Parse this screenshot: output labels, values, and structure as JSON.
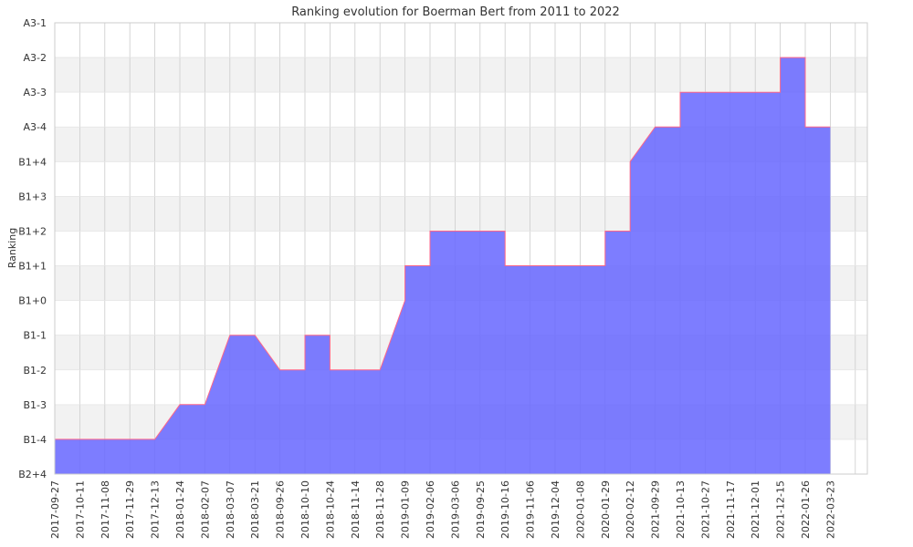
{
  "chart_data": {
    "type": "area",
    "title": "Ranking evolution for Boerman Bert from 2011 to 2022",
    "ylabel": "Ranking",
    "xlabel": "",
    "y_categories": [
      "B2+4",
      "B1-4",
      "B1-3",
      "B1-2",
      "B1-1",
      "B1+0",
      "B1+1",
      "B1+2",
      "B1+3",
      "B1+4",
      "A3-4",
      "A3-3",
      "A3-2",
      "A3-1"
    ],
    "x_tick_labels": [
      "2017-09-27",
      "2017-10-11",
      "2017-11-08",
      "2017-11-29",
      "2017-12-13",
      "2018-01-24",
      "2018-02-07",
      "2018-03-07",
      "2018-03-21",
      "2018-09-26",
      "2018-10-10",
      "2018-10-24",
      "2018-11-14",
      "2018-11-28",
      "2019-01-09",
      "2019-02-06",
      "2019-03-06",
      "2019-09-25",
      "2019-10-16",
      "2019-11-06",
      "2019-12-04",
      "2020-01-08",
      "2020-01-29",
      "2020-02-12",
      "2021-09-29",
      "2021-10-13",
      "2021-10-27",
      "2021-11-17",
      "2021-12-01",
      "2021-12-15",
      "2022-01-26",
      "2022-03-23"
    ],
    "series": [
      {
        "points": [
          [
            "2017-09-27",
            "B1-4"
          ],
          [
            "2017-12-13",
            "B1-4"
          ],
          [
            "2018-01-24",
            "B1-3"
          ],
          [
            "2018-02-07",
            "B1-3"
          ],
          [
            "2018-03-07",
            "B1-1"
          ],
          [
            "2018-03-21",
            "B1-1"
          ],
          [
            "2018-09-26",
            "B1-2"
          ],
          [
            "2018-10-10",
            "B1-2"
          ],
          [
            "2018-10-10",
            "B1-1"
          ],
          [
            "2018-10-24",
            "B1-1"
          ],
          [
            "2018-10-24",
            "B1-2"
          ],
          [
            "2018-11-28",
            "B1-2"
          ],
          [
            "2019-01-09",
            "B1+0"
          ],
          [
            "2019-01-09",
            "B1+1"
          ],
          [
            "2019-02-06",
            "B1+1"
          ],
          [
            "2019-02-06",
            "B1+2"
          ],
          [
            "2019-10-16",
            "B1+2"
          ],
          [
            "2019-10-16",
            "B1+1"
          ],
          [
            "2020-01-29",
            "B1+1"
          ],
          [
            "2020-01-29",
            "B1+2"
          ],
          [
            "2020-02-12",
            "B1+2"
          ],
          [
            "2020-02-12",
            "B1+4"
          ],
          [
            "2021-09-29",
            "A3-4"
          ],
          [
            "2021-10-13",
            "A3-4"
          ],
          [
            "2021-10-13",
            "A3-3"
          ],
          [
            "2021-12-15",
            "A3-3"
          ],
          [
            "2021-12-15",
            "A3-2"
          ],
          [
            "2022-01-26",
            "A3-2"
          ],
          [
            "2022-01-26",
            "A3-4"
          ],
          [
            "2022-03-23",
            "A3-4"
          ]
        ]
      }
    ],
    "grid": true,
    "colors": {
      "area_fill": "#6666ff",
      "line": "#ff6688",
      "band": "#f2f2f2",
      "grid": "#cccccc"
    }
  }
}
